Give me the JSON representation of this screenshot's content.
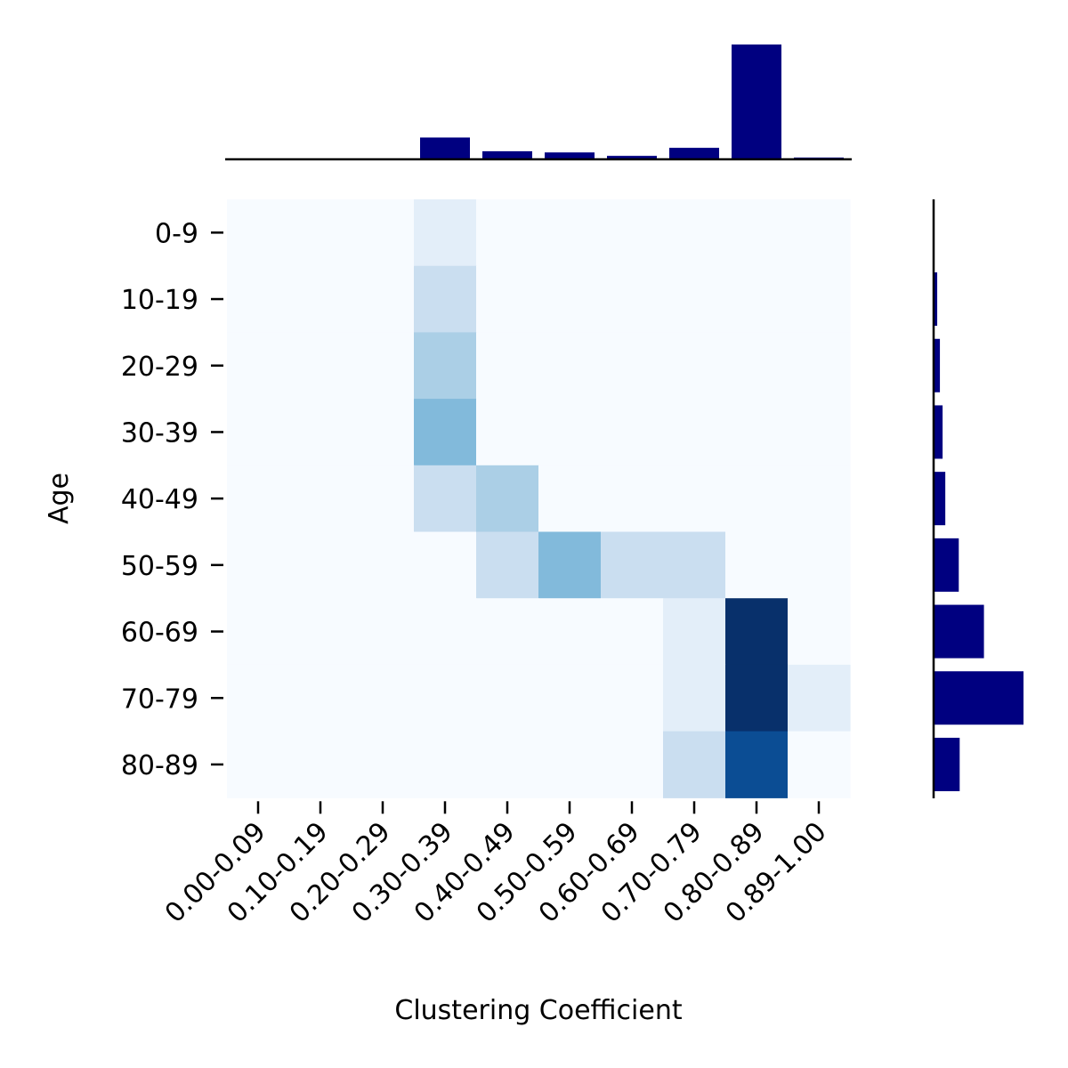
{
  "chart_data": {
    "type": "heatmap",
    "xlabel": "Clustering Coefficient",
    "ylabel": "Age",
    "x_categories": [
      "0.00-0.09",
      "0.10-0.19",
      "0.20-0.29",
      "0.30-0.39",
      "0.40-0.49",
      "0.50-0.59",
      "0.60-0.69",
      "0.70-0.79",
      "0.80-0.89",
      "0.89-1.00"
    ],
    "y_categories": [
      "0-9",
      "10-19",
      "20-29",
      "30-39",
      "40-49",
      "50-59",
      "60-69",
      "70-79",
      "80-89"
    ],
    "cells": [
      {
        "x": "0.30-0.39",
        "y": "0-9",
        "level": 0.1
      },
      {
        "x": "0.30-0.39",
        "y": "10-19",
        "level": 0.2
      },
      {
        "x": "0.30-0.39",
        "y": "20-29",
        "level": 0.3
      },
      {
        "x": "0.30-0.39",
        "y": "30-39",
        "level": 0.45
      },
      {
        "x": "0.30-0.39",
        "y": "40-49",
        "level": 0.2
      },
      {
        "x": "0.40-0.49",
        "y": "40-49",
        "level": 0.3
      },
      {
        "x": "0.40-0.49",
        "y": "50-59",
        "level": 0.2
      },
      {
        "x": "0.50-0.59",
        "y": "50-59",
        "level": 0.45
      },
      {
        "x": "0.60-0.69",
        "y": "50-59",
        "level": 0.2
      },
      {
        "x": "0.70-0.79",
        "y": "50-59",
        "level": 0.2
      },
      {
        "x": "0.70-0.79",
        "y": "60-69",
        "level": 0.1
      },
      {
        "x": "0.80-0.89",
        "y": "60-69",
        "level": 1.0
      },
      {
        "x": "0.70-0.79",
        "y": "70-79",
        "level": 0.1
      },
      {
        "x": "0.80-0.89",
        "y": "70-79",
        "level": 1.0
      },
      {
        "x": "0.89-1.00",
        "y": "70-79",
        "level": 0.1
      },
      {
        "x": "0.70-0.79",
        "y": "80-89",
        "level": 0.2
      },
      {
        "x": "0.80-0.89",
        "y": "80-89",
        "level": 0.8
      }
    ],
    "top_marginal": {
      "type": "bar",
      "categories": [
        "0.30-0.39",
        "0.40-0.49",
        "0.50-0.59",
        "0.60-0.69",
        "0.70-0.79",
        "0.80-0.89",
        "0.89-1.00"
      ],
      "values": [
        0.19,
        0.07,
        0.06,
        0.03,
        0.1,
        1.0,
        0.015
      ]
    },
    "right_marginal": {
      "type": "bar",
      "categories": [
        "10-19",
        "20-29",
        "30-39",
        "40-49",
        "50-59",
        "60-69",
        "70-79",
        "80-89"
      ],
      "values": [
        0.04,
        0.07,
        0.1,
        0.13,
        0.28,
        0.56,
        1.0,
        0.29
      ]
    },
    "colormap": {
      "low": "#f7fbff",
      "high": "#08306b"
    },
    "marginal_color": "#000080",
    "grid": false
  }
}
